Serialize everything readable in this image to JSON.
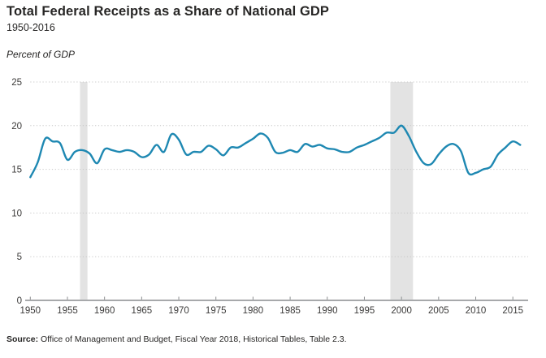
{
  "header": {
    "title": "Total Federal Receipts as a Share of National GDP",
    "subtitle": "1950-2016",
    "unit_label": "Percent of GDP"
  },
  "source": {
    "label": "Source:",
    "text": " Office of Management and Budget, Fiscal Year 2018, Historical Tables, Table 2.3."
  },
  "colors": {
    "line": "#1e88b2",
    "band": "#e3e3e3",
    "gridline": "#c7c7c7",
    "axis": "#a7a9ab",
    "tick": "#8c8e90",
    "tick_text": "#3b3a39",
    "text": "#272625"
  },
  "chart_data": {
    "type": "line",
    "title": "Total Federal Receipts as a Share of National GDP",
    "subtitle": "1950-2016",
    "xlabel": "",
    "ylabel": "Percent of GDP",
    "ylim": [
      0,
      25
    ],
    "yticks": [
      0,
      5,
      10,
      15,
      20,
      25
    ],
    "xticks": [
      1950,
      1955,
      1960,
      1965,
      1970,
      1975,
      1980,
      1985,
      1990,
      1995,
      2000,
      2005,
      2010,
      2015
    ],
    "grid": "horizontal-dotted",
    "legend": "none",
    "x": [
      1950,
      1951,
      1952,
      1953,
      1954,
      1955,
      1956,
      1957,
      1958,
      1959,
      1960,
      1961,
      1962,
      1963,
      1964,
      1965,
      1966,
      1967,
      1968,
      1969,
      1970,
      1971,
      1972,
      1973,
      1974,
      1975,
      1976,
      1977,
      1978,
      1979,
      1980,
      1981,
      1982,
      1983,
      1984,
      1985,
      1986,
      1987,
      1988,
      1989,
      1990,
      1991,
      1992,
      1993,
      1994,
      1995,
      1996,
      1997,
      1998,
      1999,
      2000,
      2001,
      2002,
      2003,
      2004,
      2005,
      2006,
      2007,
      2008,
      2009,
      2010,
      2011,
      2012,
      2013,
      2014,
      2015,
      2016
    ],
    "series": [
      {
        "name": "Total federal receipts, percent of GDP",
        "values": [
          14.1,
          15.8,
          18.5,
          18.2,
          18.0,
          16.1,
          17.0,
          17.2,
          16.8,
          15.7,
          17.3,
          17.2,
          17.0,
          17.2,
          17.0,
          16.4,
          16.7,
          17.8,
          17.0,
          19.0,
          18.4,
          16.7,
          17.0,
          17.0,
          17.7,
          17.3,
          16.6,
          17.5,
          17.5,
          18.0,
          18.5,
          19.1,
          18.6,
          17.0,
          16.9,
          17.2,
          17.0,
          17.9,
          17.6,
          17.8,
          17.4,
          17.3,
          17.0,
          17.0,
          17.5,
          17.8,
          18.2,
          18.6,
          19.2,
          19.2,
          20.0,
          18.8,
          17.0,
          15.7,
          15.6,
          16.7,
          17.6,
          17.9,
          17.1,
          14.6,
          14.6,
          15.0,
          15.3,
          16.7,
          17.5,
          18.2,
          17.8
        ]
      }
    ],
    "shaded_bands": [
      {
        "from": 1956.7,
        "to": 1957.7
      },
      {
        "from": 1998.5,
        "to": 2001.55
      }
    ]
  }
}
